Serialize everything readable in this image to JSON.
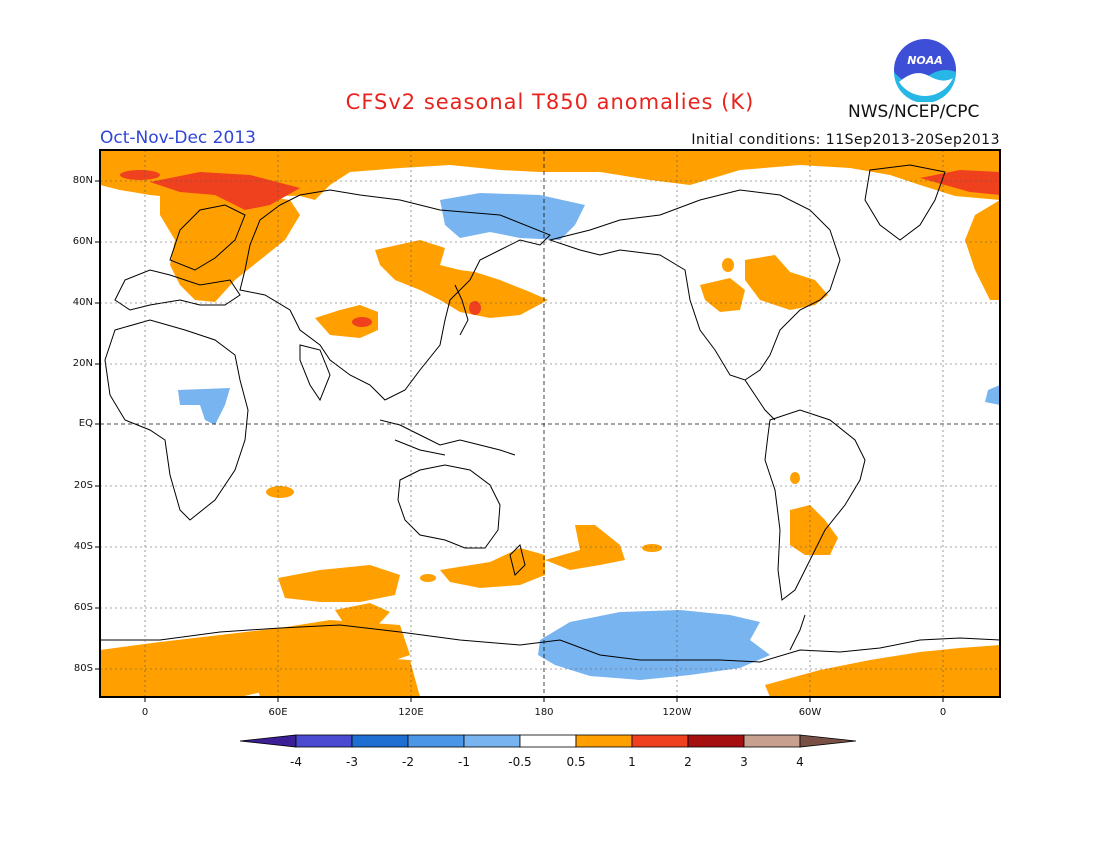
{
  "header": {
    "title": "CFSv2 seasonal T850 anomalies (K)",
    "period": "Oct-Nov-Dec 2013",
    "initial_conditions": "Initial conditions: 11Sep2013-20Sep2013",
    "org": "NWS/NCEP/CPC",
    "logo_text": "NOAA"
  },
  "map": {
    "projection": "cylindrical, centered on 180",
    "lat_range": [
      -90,
      90
    ],
    "lon_range": [
      -20,
      380
    ],
    "lat_labels": [
      "80N",
      "60N",
      "40N",
      "20N",
      "EQ",
      "20S",
      "40S",
      "60S",
      "80S"
    ],
    "lon_labels": [
      "0",
      "60E",
      "120E",
      "180",
      "120W",
      "60W",
      "0"
    ],
    "gridlines": "dotted",
    "colors": {
      "positive_0_5_1": "#ff9f00",
      "positive_1_2": "#f0411e",
      "negative": "#78b4f0",
      "coast": "#000000"
    }
  },
  "colorbar": {
    "labels": [
      "-4",
      "-3",
      "-2",
      "-1",
      "-0.5",
      "0.5",
      "1",
      "2",
      "3",
      "4"
    ],
    "colors": [
      "#3c1e96",
      "#4b4bd2",
      "#1f6ed2",
      "#4b96e6",
      "#78b4f0",
      "#ffffff",
      "#ff9f00",
      "#f0411e",
      "#a50f0f",
      "#c8a090",
      "#785046"
    ]
  }
}
